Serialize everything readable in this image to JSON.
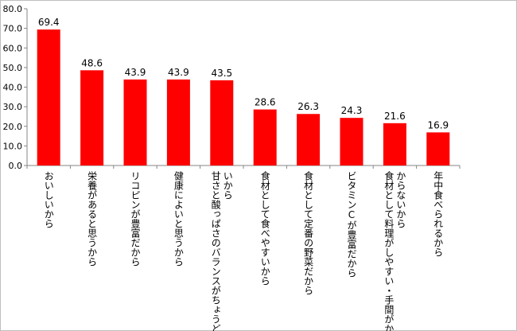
{
  "chart_data": {
    "type": "bar",
    "categories": [
      "おいしいから",
      "栄養があると思うから",
      "リコピンが豊富だから",
      "健康によいと思うから",
      "甘さと酸っぱさのバランスがちょうどよいから",
      "食材として食べやすいから",
      "食材として定番の野菜だから",
      "ビタミンCが豊富だから",
      "食材として料理がしやすい・手間がかからないから",
      "年中食べられるから"
    ],
    "category_lines": [
      [
        "おいしいから"
      ],
      [
        "栄養があると思うから"
      ],
      [
        "リコピンが豊富だから"
      ],
      [
        "健康によいと思うから"
      ],
      [
        "甘さと酸っぱさのバランスがちょうどよ",
        "いから"
      ],
      [
        "食材として食べやすいから"
      ],
      [
        "食材として定番の野菜だから"
      ],
      [
        "ビタミンCが豊富だから"
      ],
      [
        "食材として料理がしやすい・手間がか",
        "からないから"
      ],
      [
        "年中食べられるから"
      ]
    ],
    "values": [
      69.4,
      48.6,
      43.9,
      43.9,
      43.5,
      28.6,
      26.3,
      24.3,
      21.6,
      16.9
    ],
    "value_labels": [
      "69.4",
      "48.6",
      "43.9",
      "43.9",
      "43.5",
      "28.6",
      "26.3",
      "24.3",
      "21.6",
      "16.9"
    ],
    "yticks": [
      "0.0",
      "10.0",
      "20.0",
      "30.0",
      "40.0",
      "50.0",
      "60.0",
      "70.0",
      "80.0"
    ],
    "ylim": [
      0,
      80
    ],
    "title": "",
    "xlabel": "",
    "ylabel": "",
    "grid": false,
    "bar_color": "#ff0000"
  }
}
